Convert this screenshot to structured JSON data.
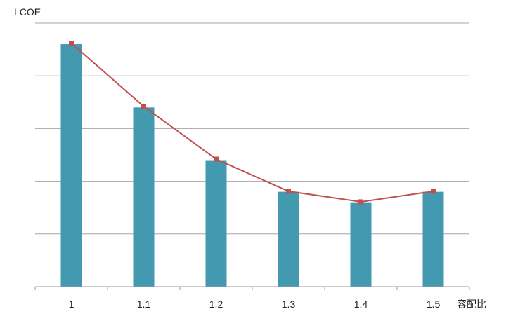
{
  "chart_data": {
    "type": "bar",
    "ylabel": "LCOE",
    "xlabel": "容配比",
    "categories": [
      "1",
      "1.1",
      "1.2",
      "1.3",
      "1.4",
      "1.5"
    ],
    "series": [
      {
        "kind": "bar",
        "values": [
          4.6,
          3.4,
          2.4,
          1.8,
          1.6,
          1.8
        ]
      },
      {
        "kind": "line",
        "values": [
          4.62,
          3.42,
          2.42,
          1.81,
          1.61,
          1.81
        ]
      }
    ],
    "ylim": [
      0,
      5
    ],
    "yticks": [
      0,
      1,
      2,
      3,
      4,
      5
    ],
    "grid": true,
    "legend": "none",
    "colors": {
      "bar": "#4299b0",
      "line": "#c0504d",
      "grid": "#a6a6a6",
      "axis": "#999999"
    }
  }
}
